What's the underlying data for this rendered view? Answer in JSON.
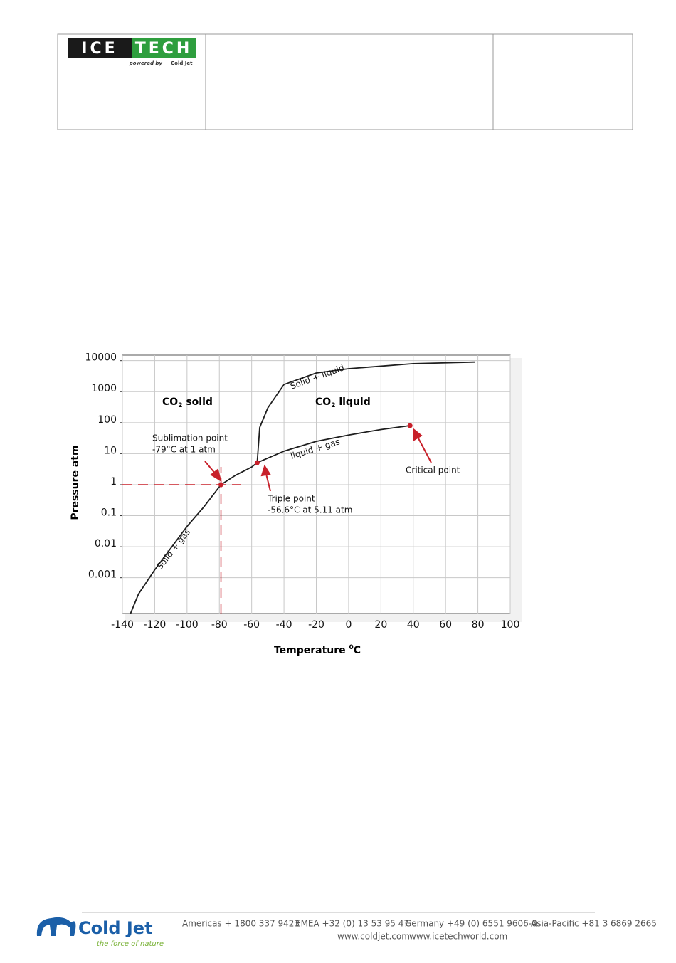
{
  "header": {
    "logo_left": "ICE",
    "logo_right": "TECH",
    "powered_by": "powered by",
    "powered_brand": "Cold Jet"
  },
  "chart_data": {
    "type": "line",
    "y_title": "Pressure  atm",
    "x_title": {
      "text": "Temperature ",
      "sup": "0",
      "unit": "C"
    },
    "regions": [
      {
        "prefix": "CO",
        "sub": "2",
        "suffix": " solid"
      },
      {
        "prefix": "CO",
        "sub": "2",
        "suffix": " liquid"
      }
    ],
    "xlim": [
      -140,
      100
    ],
    "xticks": [
      -140,
      -120,
      -100,
      -80,
      -60,
      -40,
      -20,
      0,
      20,
      40,
      60,
      80,
      100
    ],
    "ylim": [
      7e-05,
      15000
    ],
    "yticks": [
      0.001,
      0.01,
      0.1,
      1,
      10,
      100,
      1000,
      10000
    ],
    "log_y": true,
    "grid": true,
    "series": [
      {
        "name": "Solid + gas",
        "color": "#1e1e1e",
        "x": [
          -135,
          -130,
          -120,
          -110,
          -100,
          -90,
          -79,
          -70,
          -60,
          -56.6
        ],
        "values": [
          7e-05,
          0.0003,
          0.0018,
          0.009,
          0.045,
          0.18,
          1,
          2,
          3.7,
          5.11
        ]
      },
      {
        "name": "liquid + gas",
        "color": "#1e1e1e",
        "x": [
          -56.6,
          -40,
          -20,
          0,
          20,
          38
        ],
        "values": [
          5.11,
          12,
          25,
          40,
          60,
          80
        ]
      },
      {
        "name": "Solid + liquid",
        "color": "#1e1e1e",
        "x": [
          -56.6,
          -55,
          -50,
          -40,
          -20,
          0,
          40,
          78
        ],
        "values": [
          5.11,
          70,
          300,
          1700,
          4000,
          5500,
          8000,
          9000
        ]
      }
    ],
    "points": [
      {
        "name": "Sublimation point",
        "note": "-79°C at 1 atm",
        "x": -79,
        "y": 1
      },
      {
        "name": "Triple point",
        "note": "-56.6°C at  5.11 atm",
        "x": -56.6,
        "y": 5.11
      },
      {
        "name": "Critical point",
        "x": 38,
        "y": 80
      }
    ],
    "point_color": "#c8202a"
  },
  "footer": {
    "brand": "Cold Jet",
    "tagline": "the force of nature",
    "contacts": [
      "Americas + 1800 337 9423",
      "EMEA +32 (0) 13 53 95 47",
      "Germany +49 (0) 6551 9606-0",
      "Asia-Pacific +81 3 6869 2665"
    ],
    "websites": [
      "www.coldjet.com",
      "www.icetechworld.com"
    ]
  }
}
